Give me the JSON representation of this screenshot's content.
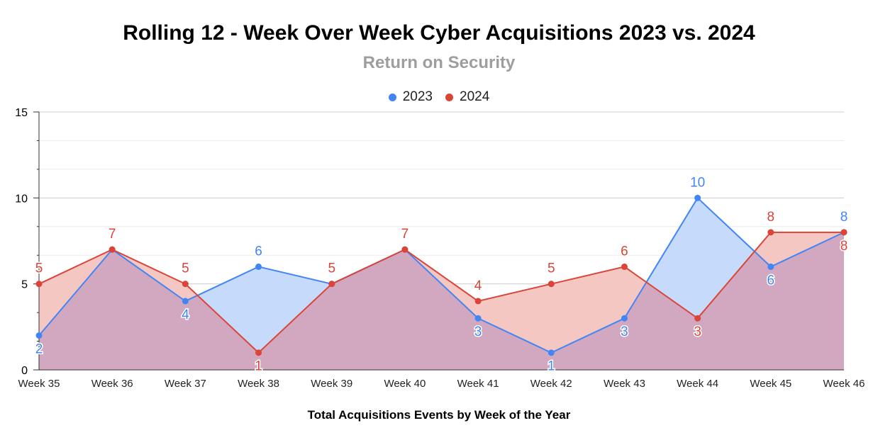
{
  "chart_data": {
    "type": "area",
    "title": "Rolling 12 - Week Over Week Cyber Acquisitions 2023 vs. 2024",
    "subtitle": "Return on Security",
    "xlabel": "Total Acquisitions Events by Week of the Year",
    "ylabel": "",
    "categories": [
      "Week 35",
      "Week 36",
      "Week 37",
      "Week 38",
      "Week 39",
      "Week 40",
      "Week 41",
      "Week 42",
      "Week 43",
      "Week 44",
      "Week 45",
      "Week 46"
    ],
    "series": [
      {
        "name": "2023",
        "color": "#4285f4",
        "fill": "#c6dafc",
        "values": [
          2,
          7,
          4,
          6,
          5,
          7,
          3,
          1,
          3,
          10,
          6,
          8
        ]
      },
      {
        "name": "2024",
        "color": "#db4437",
        "fill": "#f4c7c3",
        "values": [
          5,
          7,
          5,
          1,
          5,
          7,
          4,
          5,
          6,
          3,
          8,
          8
        ]
      }
    ],
    "overlap_color": "#d1a8c0",
    "ylim": [
      0,
      15
    ],
    "yticks": [
      0,
      5,
      10,
      15
    ],
    "grid": true,
    "legend_position": "top"
  }
}
